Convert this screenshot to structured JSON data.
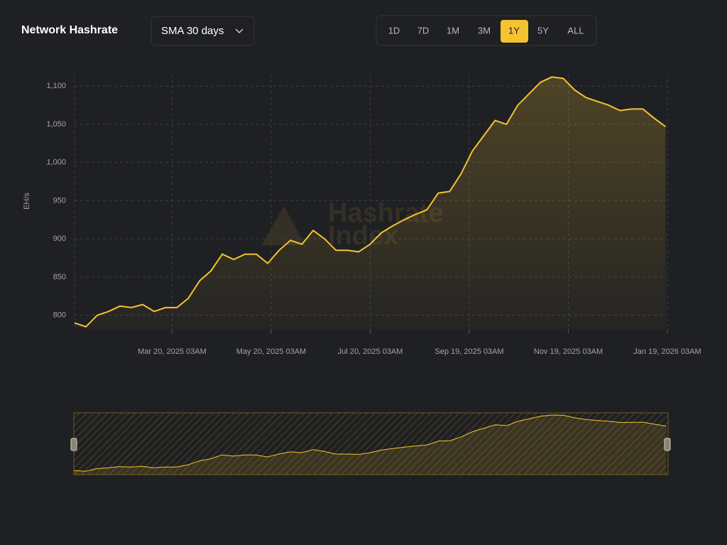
{
  "header": {
    "title": "Network Hashrate",
    "dropdown": "SMA 30 days",
    "ranges": [
      "1D",
      "7D",
      "1M",
      "3M",
      "1Y",
      "5Y",
      "ALL"
    ],
    "active_range": 4
  },
  "chart_data": {
    "type": "line",
    "y_label": "EH/s",
    "watermark": [
      "Hashrate",
      "Index"
    ],
    "color": "#f5c230",
    "area": true,
    "grid": true,
    "x": [
      "2025-01-19",
      "2025-01-26",
      "2025-02-02",
      "2025-02-09",
      "2025-02-16",
      "2025-02-23",
      "2025-03-02",
      "2025-03-09",
      "2025-03-16",
      "2025-03-23",
      "2025-03-30",
      "2025-04-06",
      "2025-04-13",
      "2025-04-20",
      "2025-04-27",
      "2025-05-04",
      "2025-05-11",
      "2025-05-18",
      "2025-05-25",
      "2025-06-01",
      "2025-06-08",
      "2025-06-15",
      "2025-06-22",
      "2025-06-29",
      "2025-07-06",
      "2025-07-13",
      "2025-07-20",
      "2025-07-27",
      "2025-08-03",
      "2025-08-10",
      "2025-08-17",
      "2025-08-24",
      "2025-08-31",
      "2025-09-07",
      "2025-09-14",
      "2025-09-21",
      "2025-09-28",
      "2025-10-05",
      "2025-10-12",
      "2025-10-19",
      "2025-10-26",
      "2025-11-02",
      "2025-11-09",
      "2025-11-16",
      "2025-11-23",
      "2025-11-30",
      "2025-12-07",
      "2025-12-14",
      "2025-12-21",
      "2025-12-28",
      "2026-01-04",
      "2026-01-11",
      "2026-01-18"
    ],
    "values": [
      790,
      785,
      800,
      805,
      812,
      810,
      814,
      805,
      810,
      810,
      822,
      845,
      858,
      880,
      873,
      880,
      880,
      868,
      885,
      898,
      893,
      911,
      900,
      885,
      885,
      883,
      893,
      908,
      917,
      925,
      932,
      938,
      960,
      962,
      985,
      1015,
      1035,
      1055,
      1050,
      1075,
      1090,
      1105,
      1112,
      1110,
      1095,
      1085,
      1080,
      1075,
      1068,
      1070,
      1070,
      1058,
      1047
    ],
    "xlim": [
      "2025-01-19T00:00",
      "2026-01-19T03:00"
    ],
    "xticks": [
      {
        "value": "2025-03-20T03:00",
        "label": "Mar 20, 2025 03AM"
      },
      {
        "value": "2025-05-20T03:00",
        "label": "May 20, 2025 03AM"
      },
      {
        "value": "2025-07-20T03:00",
        "label": "Jul 20, 2025 03AM"
      },
      {
        "value": "2025-09-19T03:00",
        "label": "Sep 19, 2025 03AM"
      },
      {
        "value": "2025-11-19T03:00",
        "label": "Nov 19, 2025 03AM"
      },
      {
        "value": "2026-01-19T03:00",
        "label": "Jan 19, 2026 03AM"
      }
    ],
    "ylim": [
      782,
      1116
    ],
    "yticks": [
      800,
      850,
      900,
      950,
      {
        "value": 1000,
        "label": "1,000"
      },
      {
        "value": 1050,
        "label": "1,050"
      },
      {
        "value": 1100,
        "label": "1,100"
      }
    ]
  }
}
